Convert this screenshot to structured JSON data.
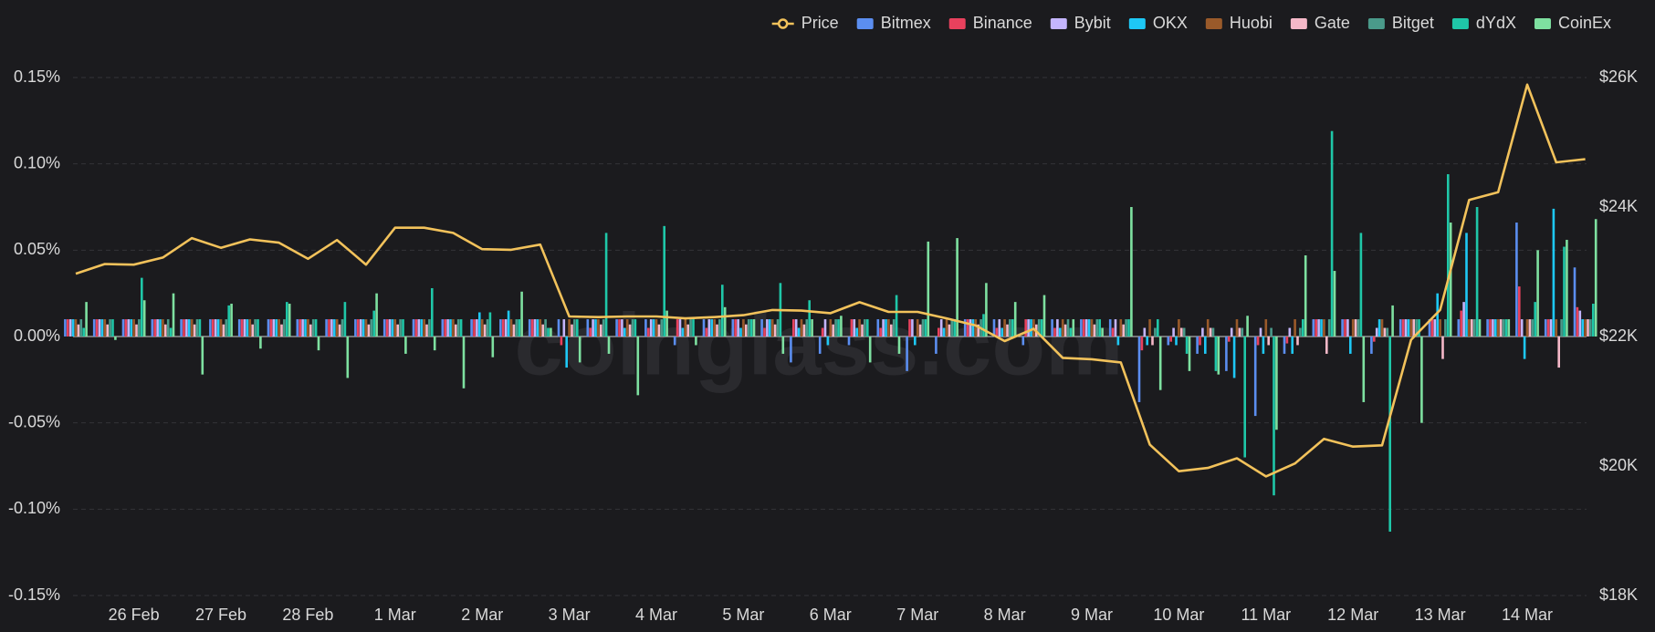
{
  "chart_data": {
    "type": "bar",
    "watermark": "coinglass.com",
    "categories": [
      null,
      null,
      "26 Feb",
      null,
      null,
      "27 Feb",
      null,
      null,
      "28 Feb",
      null,
      null,
      "1 Mar",
      null,
      null,
      "2 Mar",
      null,
      null,
      "3 Mar",
      null,
      null,
      "4 Mar",
      null,
      null,
      "5 Mar",
      null,
      null,
      "6 Mar",
      null,
      null,
      "7 Mar",
      null,
      null,
      "8 Mar",
      null,
      null,
      "9 Mar",
      null,
      null,
      "10 Mar",
      null,
      null,
      "11 Mar",
      null,
      null,
      "12 Mar",
      null,
      null,
      "13 Mar",
      null,
      null,
      "14 Mar",
      null,
      null
    ],
    "ylim": [
      -0.15,
      0.15
    ],
    "yticks": [
      {
        "value": 0.15,
        "label": "0.15%"
      },
      {
        "value": 0.1,
        "label": "0.10%"
      },
      {
        "value": 0.05,
        "label": "0.05%"
      },
      {
        "value": 0,
        "label": "0.00%"
      },
      {
        "value": -0.05,
        "label": "-0.05%"
      },
      {
        "value": -0.1,
        "label": "-0.10%"
      },
      {
        "value": -0.15,
        "label": "-0.15%"
      }
    ],
    "y2lim": [
      18000,
      26000
    ],
    "y2ticks": [
      {
        "value": 26000,
        "label": "$26K"
      },
      {
        "value": 24000,
        "label": "$24K"
      },
      {
        "value": 22000,
        "label": "$22K"
      },
      {
        "value": 20000,
        "label": "$20K"
      },
      {
        "value": 18000,
        "label": "$18K"
      }
    ],
    "grid": true,
    "legend": "top-right",
    "series": [
      {
        "name": "Price",
        "type": "line",
        "axis": "y2",
        "color": "#f2c25b",
        "values": [
          22970,
          23120,
          23110,
          23220,
          23520,
          23370,
          23500,
          23450,
          23200,
          23490,
          23110,
          23680,
          23680,
          23600,
          23350,
          23340,
          23420,
          22310,
          22300,
          22310,
          22310,
          22280,
          22300,
          22330,
          22410,
          22400,
          22360,
          22530,
          22380,
          22380,
          22280,
          22170,
          21930,
          22120,
          21670,
          21650,
          21600,
          20330,
          19920,
          19970,
          20120,
          19840,
          20040,
          20420,
          20300,
          20320,
          21950,
          22410,
          24110,
          24230,
          25890,
          24690,
          24740
        ]
      },
      {
        "name": "Bitmex",
        "color": "#5b8ef0",
        "values": [
          0.01,
          0.01,
          0.01,
          0.01,
          0.01,
          0.01,
          0.01,
          0.01,
          0.01,
          0.01,
          0.01,
          0.01,
          0.01,
          0.01,
          0.01,
          0.01,
          0.01,
          0.01,
          0.01,
          0.01,
          0.01,
          -0.005,
          0.01,
          0.01,
          0.01,
          -0.015,
          -0.01,
          -0.005,
          0.01,
          -0.02,
          -0.01,
          0.01,
          0.01,
          -0.005,
          0.01,
          0.01,
          0.01,
          -0.038,
          -0.005,
          -0.01,
          -0.02,
          -0.046,
          -0.01,
          0.01,
          0.01,
          -0.01,
          0.01,
          0.01,
          0.01,
          0.01,
          0.066,
          0.01,
          0.04
        ]
      },
      {
        "name": "Binance",
        "color": "#e8415d",
        "values": [
          0.01,
          0.01,
          0.01,
          0.01,
          0.01,
          0.01,
          0.01,
          0.01,
          0.01,
          0.01,
          0.01,
          0.01,
          0.01,
          0.01,
          0.01,
          0.01,
          0.01,
          -0.005,
          0.005,
          0.01,
          0.005,
          0.01,
          0.005,
          0.01,
          0.005,
          0.01,
          0.005,
          0.01,
          0.005,
          0.01,
          0.005,
          0.01,
          0.005,
          0.01,
          0.005,
          0.01,
          0.005,
          -0.008,
          -0.003,
          -0.005,
          -0.003,
          -0.005,
          -0.004,
          0.01,
          0.01,
          -0.003,
          0.01,
          0.01,
          0.015,
          0.01,
          0.029,
          0.01,
          0.017
        ]
      },
      {
        "name": "Bybit",
        "color": "#c4b5fd",
        "values": [
          0.01,
          0.01,
          0.01,
          0.01,
          0.01,
          0.01,
          0.01,
          0.01,
          0.01,
          0.01,
          0.01,
          0.01,
          0.01,
          0.01,
          0.01,
          0.01,
          0.01,
          0.01,
          0.01,
          0.01,
          0.01,
          0.01,
          0.01,
          0.01,
          0.01,
          0.01,
          0.01,
          0.01,
          0.01,
          0.01,
          0.01,
          0.01,
          0.01,
          0.01,
          0.01,
          0.01,
          0.01,
          0.005,
          0.005,
          0.005,
          0.005,
          0.005,
          0.005,
          0.01,
          0.01,
          0.005,
          0.01,
          0.01,
          0.02,
          0.01,
          0.01,
          0.01,
          0.015
        ]
      },
      {
        "name": "OKX",
        "color": "#1ec8f5",
        "values": [
          0.01,
          0.01,
          0.01,
          0.01,
          0.01,
          0.01,
          0.01,
          0.01,
          0.01,
          0.01,
          0.01,
          0.01,
          0.01,
          0.01,
          0.014,
          0.015,
          0.01,
          -0.018,
          0.01,
          0.005,
          0.01,
          0.005,
          0.01,
          0.005,
          0.01,
          0.005,
          -0.005,
          0.005,
          0.01,
          -0.005,
          0.005,
          0.01,
          0.005,
          0.01,
          0.005,
          0.01,
          -0.005,
          -0.005,
          -0.005,
          -0.01,
          -0.024,
          -0.01,
          -0.01,
          0.01,
          -0.01,
          0.01,
          0.01,
          0.025,
          0.06,
          0.01,
          -0.013,
          0.074,
          0.01
        ]
      },
      {
        "name": "Huobi",
        "color": "#9a5a2a",
        "values": [
          0.01,
          0.01,
          0.01,
          0.01,
          0.01,
          0.01,
          0.01,
          0.01,
          0.01,
          0.01,
          0.01,
          0.01,
          0.01,
          0.01,
          0.01,
          0.01,
          0.01,
          0.01,
          0.01,
          0.01,
          0.01,
          0.01,
          0.01,
          0.01,
          0.01,
          0.01,
          0.01,
          0.01,
          0.01,
          0.01,
          0.01,
          0.01,
          0.01,
          0.01,
          0.01,
          0.01,
          0.01,
          0.01,
          0.01,
          0.01,
          0.01,
          0.01,
          0.01,
          0.01,
          0.01,
          0.01,
          0.01,
          0.01,
          0.01,
          0.01,
          0.01,
          0.01,
          0.01
        ]
      },
      {
        "name": "Gate",
        "color": "#f5b8c8",
        "values": [
          0.007,
          0.007,
          0.007,
          0.007,
          0.007,
          0.007,
          0.007,
          0.007,
          0.007,
          0.007,
          0.007,
          0.007,
          0.007,
          0.007,
          0.007,
          0.007,
          0.007,
          0.007,
          0.007,
          0.007,
          0.007,
          0.007,
          0.007,
          0.007,
          0.007,
          0.007,
          0.007,
          0.007,
          0.007,
          0.007,
          0.007,
          0.007,
          0.007,
          0.007,
          0.007,
          0.007,
          0.007,
          -0.005,
          0.005,
          0.005,
          0.005,
          -0.005,
          -0.005,
          -0.01,
          0.01,
          0.005,
          0.01,
          -0.013,
          0.01,
          0.01,
          0.01,
          -0.018,
          0.01
        ]
      },
      {
        "name": "Bitget",
        "color": "#4a9a8a",
        "values": [
          0.01,
          0.01,
          0.01,
          0.01,
          0.01,
          0.01,
          0.01,
          0.01,
          0.01,
          0.01,
          0.01,
          0.01,
          0.01,
          0.01,
          0.01,
          0.01,
          0.01,
          0.01,
          0.01,
          0.01,
          0.01,
          0.01,
          0.01,
          0.01,
          0.01,
          0.01,
          0.01,
          0.01,
          0.01,
          0.01,
          0.01,
          0.01,
          0.01,
          0.01,
          0.01,
          0.01,
          0.01,
          0.005,
          0.005,
          0.005,
          0.005,
          0.005,
          0.005,
          0.01,
          0.01,
          0.005,
          0.01,
          0.01,
          0.01,
          0.01,
          0.01,
          0.01,
          0.01
        ]
      },
      {
        "name": "dYdX",
        "color": "#1fc7a8",
        "values": [
          0.005,
          0.01,
          0.034,
          0.005,
          0.01,
          0.018,
          0.01,
          0.02,
          0.01,
          0.02,
          0.015,
          0.01,
          0.028,
          0.01,
          0.014,
          0.01,
          0.005,
          0.01,
          0.06,
          0.01,
          0.064,
          0.01,
          0.03,
          0.01,
          0.031,
          0.021,
          0.01,
          0.01,
          0.024,
          0.01,
          0.01,
          0.013,
          0.01,
          0.01,
          0.005,
          0.01,
          0.01,
          0.01,
          -0.01,
          -0.02,
          -0.07,
          -0.092,
          0.01,
          0.119,
          0.06,
          -0.113,
          0.01,
          0.094,
          0.075,
          0.01,
          0.02,
          0.052,
          0.019
        ]
      },
      {
        "name": "CoinEx",
        "color": "#7ee0a0",
        "values": [
          0.02,
          -0.002,
          0.021,
          0.025,
          -0.022,
          0.019,
          -0.007,
          0.019,
          -0.008,
          -0.024,
          0.025,
          -0.01,
          -0.008,
          -0.03,
          -0.012,
          0.026,
          0.005,
          -0.015,
          -0.01,
          -0.034,
          0.015,
          -0.005,
          0.017,
          0.01,
          -0.01,
          0.01,
          0.012,
          -0.015,
          -0.01,
          0.055,
          0.057,
          0.031,
          0.02,
          0.024,
          0.01,
          0.005,
          0.075,
          -0.031,
          -0.02,
          -0.022,
          0.012,
          -0.054,
          0.047,
          0.038,
          -0.038,
          0.018,
          -0.05,
          0.066,
          0.01,
          0.01,
          0.05,
          0.056,
          0.068
        ]
      }
    ]
  }
}
